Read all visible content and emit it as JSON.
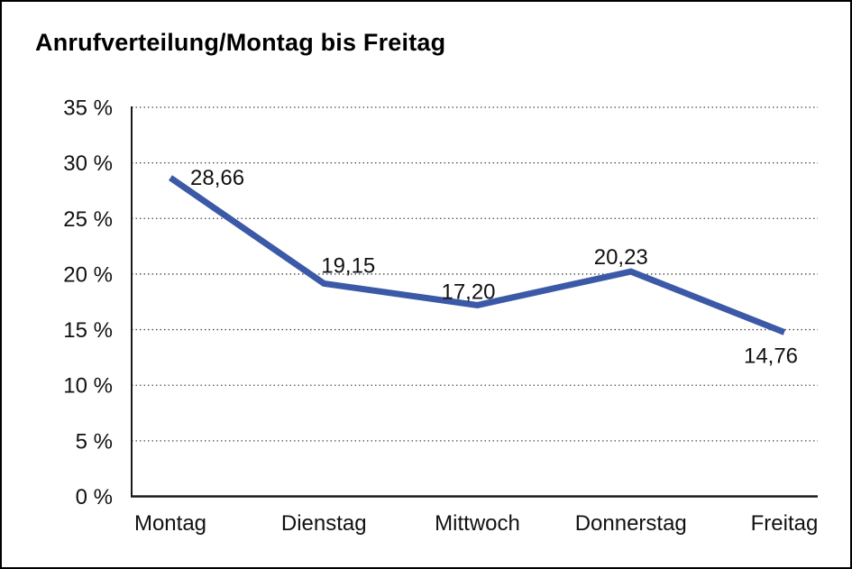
{
  "window": {
    "background": "#ffffff",
    "border_color": "#000000"
  },
  "chart": {
    "title": "Anrufverteilung/Montag bis Freitag"
  },
  "chart_data": {
    "type": "line",
    "title": "Anrufverteilung/Montag bis Freitag",
    "categories": [
      "Montag",
      "Dienstag",
      "Mittwoch",
      "Donnerstag",
      "Freitag"
    ],
    "series": [
      {
        "name": "Anrufverteilung",
        "values": [
          28.66,
          19.15,
          17.2,
          20.23,
          14.76
        ]
      }
    ],
    "value_labels": [
      "28,66",
      "19,15",
      "17,20",
      "20,23",
      "14,76"
    ],
    "y_ticks": [
      {
        "value": 0,
        "label": "0 %"
      },
      {
        "value": 5,
        "label": "5 %"
      },
      {
        "value": 10,
        "label": "10 %"
      },
      {
        "value": 15,
        "label": "15 %"
      },
      {
        "value": 20,
        "label": "20 %"
      },
      {
        "value": 25,
        "label": "25 %"
      },
      {
        "value": 30,
        "label": "30 %"
      },
      {
        "value": 35,
        "label": "35 %"
      }
    ],
    "ylim": [
      0,
      35
    ],
    "grid": "horizontal-dotted",
    "legend": "none",
    "colors": {
      "line": "#3B59A7",
      "axis": "#1a1a1a",
      "grid": "#4a4a4a",
      "text": "#111111"
    }
  }
}
